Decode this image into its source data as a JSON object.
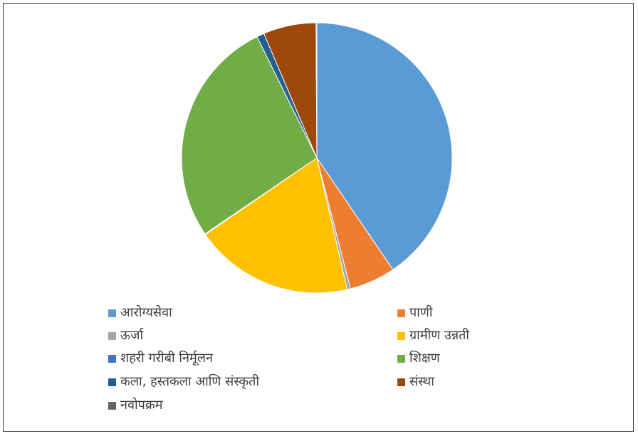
{
  "chart_data": {
    "type": "pie",
    "title": "",
    "legend_position": "bottom",
    "categories": [
      "आरोग्यसेवा",
      "पाणी",
      "ऊर्जा",
      "ग्रामीण उन्नती",
      "शहरी गरीबी निर्मूलन",
      "शिक्षण",
      "कला, हस्तकला आणि संस्कृती",
      "संस्था",
      "नवोपक्रम"
    ],
    "values": [
      40.5,
      5.5,
      0.4,
      19.0,
      0.1,
      27.2,
      0.9,
      6.3,
      0.1
    ],
    "colors": [
      "#5B9BD5",
      "#ED7D31",
      "#A5A5A5",
      "#FFC000",
      "#4472C4",
      "#70AD47",
      "#255E91",
      "#9E480E",
      "#636363"
    ]
  }
}
